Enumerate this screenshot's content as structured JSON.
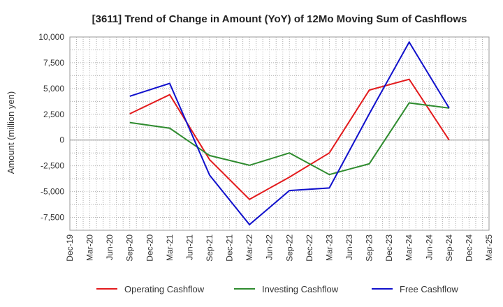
{
  "chart_data": {
    "type": "line",
    "title": "[3611]  Trend of Change in Amount (YoY) of 12Mo Moving Sum of Cashflows",
    "xlabel": "",
    "ylabel": "Amount (million yen)",
    "ylim": [
      -8750,
      10000
    ],
    "yticks": [
      10000,
      7500,
      5000,
      2500,
      0,
      -2500,
      -5000,
      -7500
    ],
    "ytick_labels": [
      "10,000",
      "7,500",
      "5,000",
      "2,500",
      "0",
      "-2,500",
      "-5,000",
      "-7,500"
    ],
    "categories": [
      "Dec-19",
      "Mar-20",
      "Jun-20",
      "Sep-20",
      "Dec-20",
      "Mar-21",
      "Jun-21",
      "Sep-21",
      "Dec-21",
      "Mar-22",
      "Jun-22",
      "Sep-22",
      "Dec-22",
      "Mar-23",
      "Jun-23",
      "Sep-23",
      "Dec-23",
      "Mar-24",
      "Jun-24",
      "Sep-24",
      "Dec-24",
      "Mar-25"
    ],
    "grid": true,
    "legend_position": "bottom",
    "series": [
      {
        "name": "Operating Cashflow",
        "color": "#e31a1c",
        "values": [
          null,
          null,
          null,
          2550,
          null,
          4400,
          null,
          -1900,
          null,
          -5750,
          null,
          -3600,
          null,
          -1250,
          null,
          4850,
          null,
          5900,
          null,
          0,
          null,
          null
        ]
      },
      {
        "name": "Investing Cashflow",
        "color": "#2e8b2e",
        "values": [
          null,
          null,
          null,
          1700,
          null,
          1150,
          null,
          -1500,
          null,
          -2450,
          null,
          -1250,
          null,
          -3350,
          null,
          -2300,
          null,
          3600,
          null,
          3100,
          null,
          null
        ]
      },
      {
        "name": "Free Cashflow",
        "color": "#1010cc",
        "values": [
          null,
          null,
          null,
          4250,
          null,
          5500,
          null,
          -3400,
          null,
          -8200,
          null,
          -4900,
          null,
          -4650,
          null,
          2550,
          null,
          9500,
          null,
          3100,
          null,
          null
        ]
      }
    ]
  }
}
